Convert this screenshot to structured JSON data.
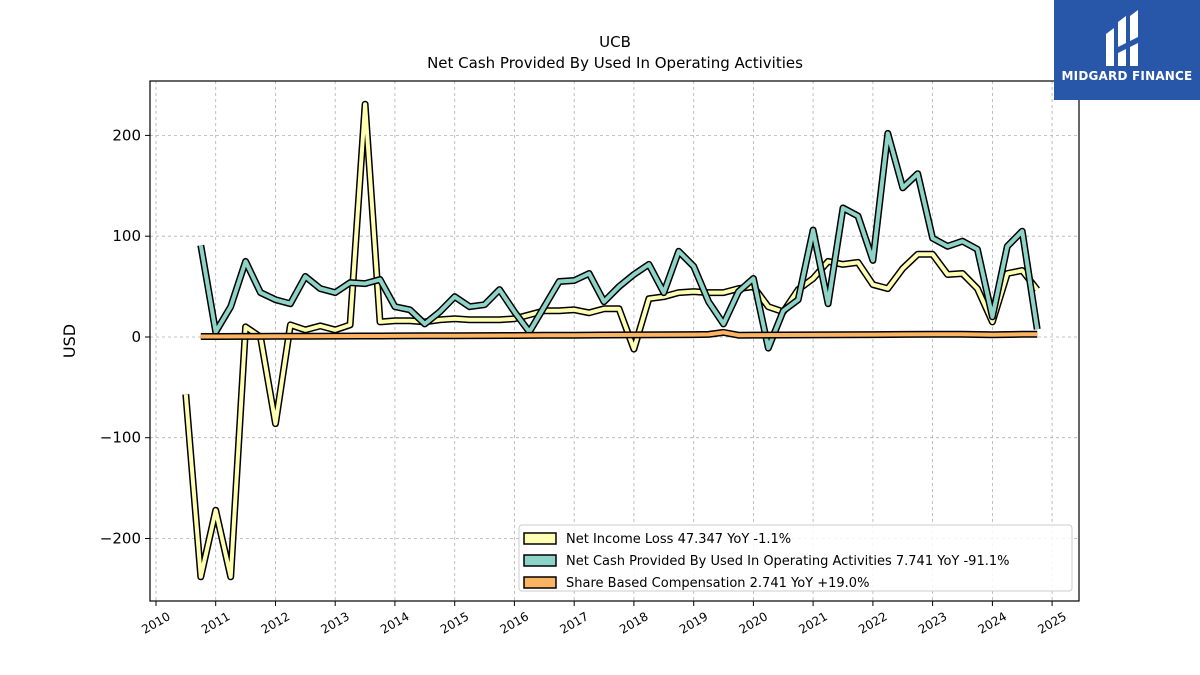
{
  "chart_data": {
    "type": "line",
    "title": "UCB",
    "subtitle": "Net Cash Provided By Used In Operating Activities",
    "ylabel": "USD",
    "xlabel": "",
    "xlim": [
      2009.9,
      2025.45
    ],
    "ylim": [
      -262,
      254
    ],
    "x_ticks": [
      2010,
      2011,
      2012,
      2013,
      2014,
      2015,
      2016,
      2017,
      2018,
      2019,
      2020,
      2021,
      2022,
      2023,
      2024,
      2025
    ],
    "x_tick_labels": [
      "2010",
      "2011",
      "2012",
      "2013",
      "2014",
      "2015",
      "2016",
      "2017",
      "2018",
      "2019",
      "2020",
      "2021",
      "2022",
      "2023",
      "2024",
      "2025"
    ],
    "y_ticks": [
      -200,
      -100,
      0,
      100,
      200
    ],
    "y_tick_labels": [
      "−200",
      "−100",
      "0",
      "100",
      "200"
    ],
    "grid": true,
    "legend_position": "lower-right",
    "series": [
      {
        "name": "Net Income Loss",
        "legend_label": "Net Income Loss  47.347 YoY -1.1%",
        "color": "#ffffb3",
        "points": [
          [
            2010.5,
            -57
          ],
          [
            2010.75,
            -238
          ],
          [
            2011.0,
            -172
          ],
          [
            2011.25,
            -238
          ],
          [
            2011.5,
            10
          ],
          [
            2011.75,
            0
          ],
          [
            2012.0,
            -86
          ],
          [
            2012.25,
            12
          ],
          [
            2012.5,
            7
          ],
          [
            2012.75,
            11
          ],
          [
            2013.0,
            7
          ],
          [
            2013.25,
            12
          ],
          [
            2013.5,
            231
          ],
          [
            2013.75,
            15
          ],
          [
            2014.0,
            16
          ],
          [
            2014.25,
            16
          ],
          [
            2014.5,
            15
          ],
          [
            2014.75,
            17
          ],
          [
            2015.0,
            18
          ],
          [
            2015.25,
            17
          ],
          [
            2015.5,
            17
          ],
          [
            2015.75,
            17
          ],
          [
            2016.0,
            18
          ],
          [
            2016.25,
            22
          ],
          [
            2016.5,
            26
          ],
          [
            2016.75,
            26
          ],
          [
            2017.0,
            27
          ],
          [
            2017.25,
            24
          ],
          [
            2017.5,
            28
          ],
          [
            2017.75,
            28
          ],
          [
            2018.0,
            -12
          ],
          [
            2018.25,
            38
          ],
          [
            2018.5,
            40
          ],
          [
            2018.75,
            44
          ],
          [
            2019.0,
            45
          ],
          [
            2019.25,
            44
          ],
          [
            2019.5,
            44
          ],
          [
            2019.75,
            48
          ],
          [
            2020.0,
            50
          ],
          [
            2020.25,
            30
          ],
          [
            2020.5,
            25
          ],
          [
            2020.75,
            47
          ],
          [
            2021.0,
            58
          ],
          [
            2021.25,
            75
          ],
          [
            2021.5,
            72
          ],
          [
            2021.75,
            74
          ],
          [
            2022.0,
            52
          ],
          [
            2022.25,
            48
          ],
          [
            2022.5,
            68
          ],
          [
            2022.75,
            82
          ],
          [
            2023.0,
            82
          ],
          [
            2023.25,
            62
          ],
          [
            2023.5,
            63
          ],
          [
            2023.75,
            48
          ],
          [
            2024.0,
            15
          ],
          [
            2024.25,
            63
          ],
          [
            2024.5,
            66
          ],
          [
            2024.75,
            47
          ]
        ]
      },
      {
        "name": "Net Cash Provided By Used In Operating Activities",
        "legend_label": "Net Cash Provided By Used In Operating Activities  7.741 YoY -91.1%",
        "color": "#8dd3c7",
        "points": [
          [
            2010.75,
            91
          ],
          [
            2011.0,
            5
          ],
          [
            2011.25,
            30
          ],
          [
            2011.5,
            75
          ],
          [
            2011.75,
            44
          ],
          [
            2012.0,
            37
          ],
          [
            2012.25,
            33
          ],
          [
            2012.5,
            60
          ],
          [
            2012.75,
            48
          ],
          [
            2013.0,
            44
          ],
          [
            2013.25,
            54
          ],
          [
            2013.5,
            53
          ],
          [
            2013.75,
            57
          ],
          [
            2014.0,
            30
          ],
          [
            2014.25,
            27
          ],
          [
            2014.5,
            13
          ],
          [
            2014.75,
            25
          ],
          [
            2015.0,
            40
          ],
          [
            2015.25,
            30
          ],
          [
            2015.5,
            32
          ],
          [
            2015.75,
            47
          ],
          [
            2016.0,
            25
          ],
          [
            2016.25,
            5
          ],
          [
            2016.5,
            30
          ],
          [
            2016.75,
            55
          ],
          [
            2017.0,
            56
          ],
          [
            2017.25,
            63
          ],
          [
            2017.5,
            35
          ],
          [
            2017.75,
            50
          ],
          [
            2018.0,
            62
          ],
          [
            2018.25,
            72
          ],
          [
            2018.5,
            44
          ],
          [
            2018.75,
            85
          ],
          [
            2019.0,
            70
          ],
          [
            2019.25,
            35
          ],
          [
            2019.5,
            13
          ],
          [
            2019.75,
            45
          ],
          [
            2020.0,
            58
          ],
          [
            2020.25,
            -11
          ],
          [
            2020.5,
            26
          ],
          [
            2020.75,
            37
          ],
          [
            2021.0,
            106
          ],
          [
            2021.25,
            33
          ],
          [
            2021.5,
            128
          ],
          [
            2021.75,
            120
          ],
          [
            2022.0,
            76
          ],
          [
            2022.25,
            202
          ],
          [
            2022.5,
            148
          ],
          [
            2022.75,
            162
          ],
          [
            2023.0,
            98
          ],
          [
            2023.25,
            90
          ],
          [
            2023.5,
            95
          ],
          [
            2023.75,
            87
          ],
          [
            2024.0,
            20
          ],
          [
            2024.25,
            90
          ],
          [
            2024.5,
            105
          ],
          [
            2024.75,
            7.741
          ]
        ]
      },
      {
        "name": "Share Based Compensation",
        "legend_label": "Share Based Compensation  2.741 YoY +19.0%",
        "color": "#fdb462",
        "points": [
          [
            2010.75,
            0.5
          ],
          [
            2011.0,
            0.5
          ],
          [
            2011.5,
            0.6
          ],
          [
            2012.0,
            0.7
          ],
          [
            2012.5,
            0.8
          ],
          [
            2013.0,
            0.9
          ],
          [
            2013.5,
            1.0
          ],
          [
            2014.0,
            1.1
          ],
          [
            2014.5,
            1.2
          ],
          [
            2015.0,
            1.3
          ],
          [
            2015.5,
            1.4
          ],
          [
            2016.0,
            1.5
          ],
          [
            2016.5,
            1.7
          ],
          [
            2017.0,
            1.8
          ],
          [
            2017.5,
            2.0
          ],
          [
            2018.0,
            2.1
          ],
          [
            2018.5,
            2.2
          ],
          [
            2019.0,
            2.4
          ],
          [
            2019.25,
            2.5
          ],
          [
            2019.5,
            4.5
          ],
          [
            2019.75,
            1.8
          ],
          [
            2020.0,
            1.9
          ],
          [
            2020.5,
            2.0
          ],
          [
            2021.0,
            2.1
          ],
          [
            2021.5,
            2.2
          ],
          [
            2022.0,
            2.4
          ],
          [
            2022.5,
            2.5
          ],
          [
            2023.0,
            2.6
          ],
          [
            2023.5,
            2.7
          ],
          [
            2024.0,
            2.3
          ],
          [
            2024.5,
            2.6
          ],
          [
            2024.75,
            2.741
          ]
        ]
      }
    ]
  },
  "logo": {
    "brand": "MIDGARD FINANCE",
    "icon": "midgard-finance-logo-icon",
    "background": "#2856a8"
  }
}
